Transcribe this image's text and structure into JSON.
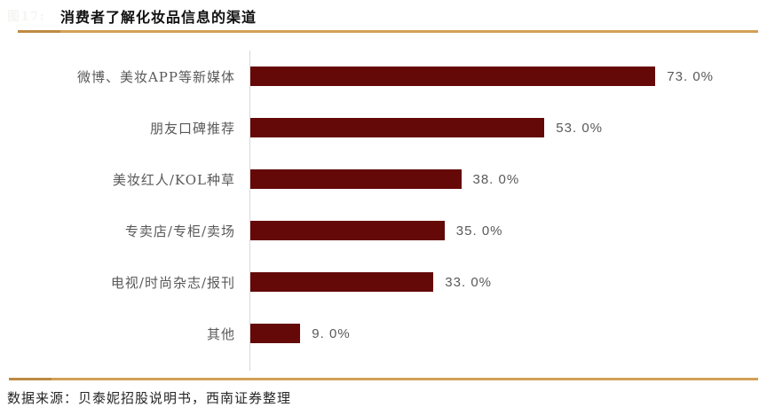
{
  "header": {
    "watermark": "图17:",
    "title": "消费者了解化妆品信息的渠道"
  },
  "footer": {
    "source": "数据来源：贝泰妮招股说明书，西南证券整理"
  },
  "colors": {
    "bar": "#650808",
    "rule": "#D2A057",
    "rule_dark": "#BE8A43",
    "label_text": "#595959",
    "axis": "#D9D9D9",
    "title_text": "#111111"
  },
  "chart_data": {
    "type": "bar",
    "orientation": "horizontal",
    "title": "消费者了解化妆品信息的渠道",
    "categories": [
      "微博、美妆APP等新媒体",
      "朋友口碑推荐",
      "美妆红人/KOL种草",
      "专卖店/专柜/卖场",
      "电视/时尚杂志/报刊",
      "其他"
    ],
    "values": [
      73.0,
      53.0,
      38.0,
      35.0,
      33.0,
      9.0
    ],
    "value_labels": [
      "73. 0%",
      "53. 0%",
      "38. 0%",
      "35. 0%",
      "33. 0%",
      "9. 0%"
    ],
    "xlabel": "",
    "ylabel": "",
    "xlim": [
      0,
      80
    ],
    "grid": false,
    "legend": "none",
    "data_labels": "outside-end"
  }
}
